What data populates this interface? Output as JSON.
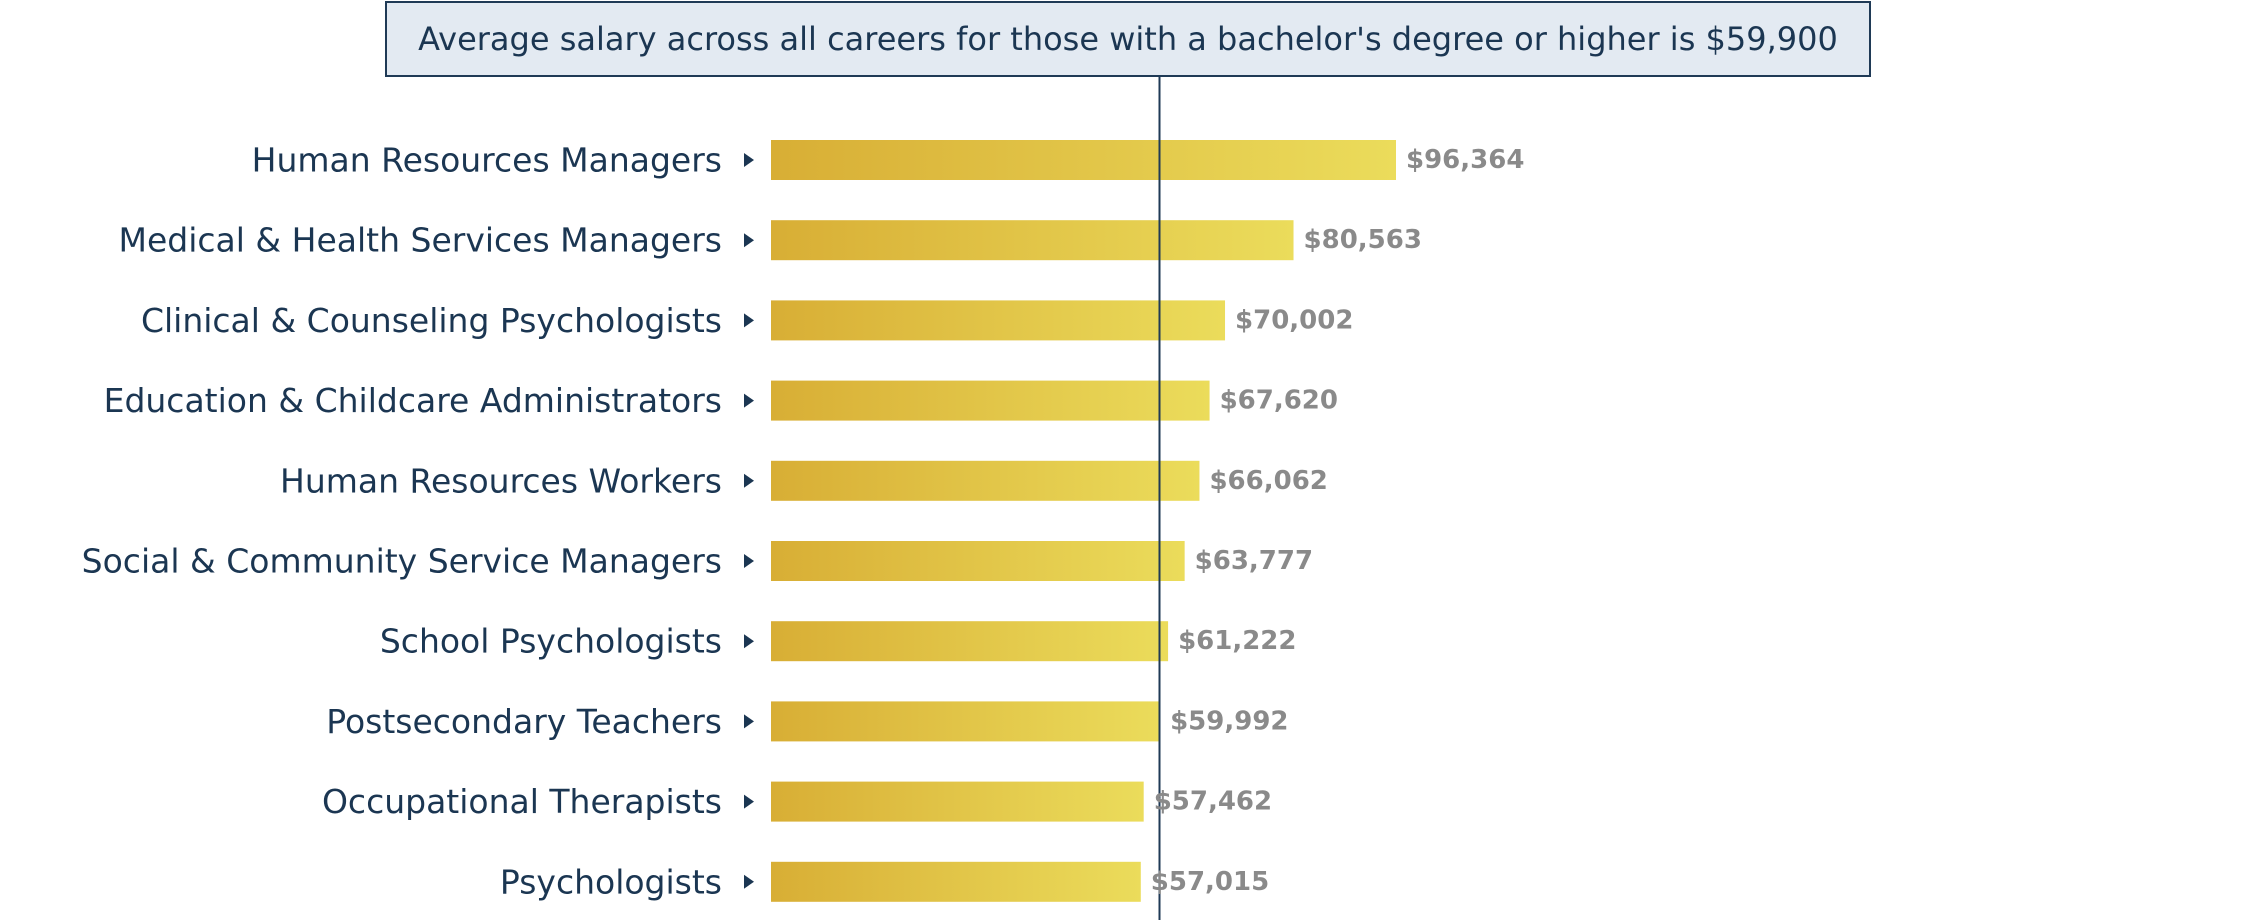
{
  "annotation": {
    "text": "Average salary across all careers for those with a bachelor's degree or higher is $59,900"
  },
  "colors": {
    "bar_start": "#d8ae35",
    "bar_end": "#ebdc5b",
    "reference_line": "#1f3a56",
    "category_text": "#1b3652",
    "value_text": "#8a8a8a",
    "annotation_fill": "#e3eaf2"
  },
  "chart_data": {
    "type": "bar",
    "orientation": "horizontal",
    "categories": [
      "Human Resources Managers",
      "Medical & Health Services Managers",
      "Clinical & Counseling Psychologists",
      "Education & Childcare Administrators",
      "Human Resources Workers",
      "Social & Community Service Managers",
      "School Psychologists",
      "Postsecondary Teachers",
      "Occupational Therapists",
      "Psychologists"
    ],
    "values": [
      96364,
      80563,
      70002,
      67620,
      66062,
      63777,
      61222,
      59992,
      57462,
      57015
    ],
    "value_labels": [
      "$96,364",
      "$80,563",
      "$70,002",
      "$67,620",
      "$66,062",
      "$63,777",
      "$61,222",
      "$59,992",
      "$57,462",
      "$57,015"
    ],
    "reference_value": 59900,
    "xlim": [
      0,
      96364
    ],
    "grid": false,
    "legend": "none"
  }
}
